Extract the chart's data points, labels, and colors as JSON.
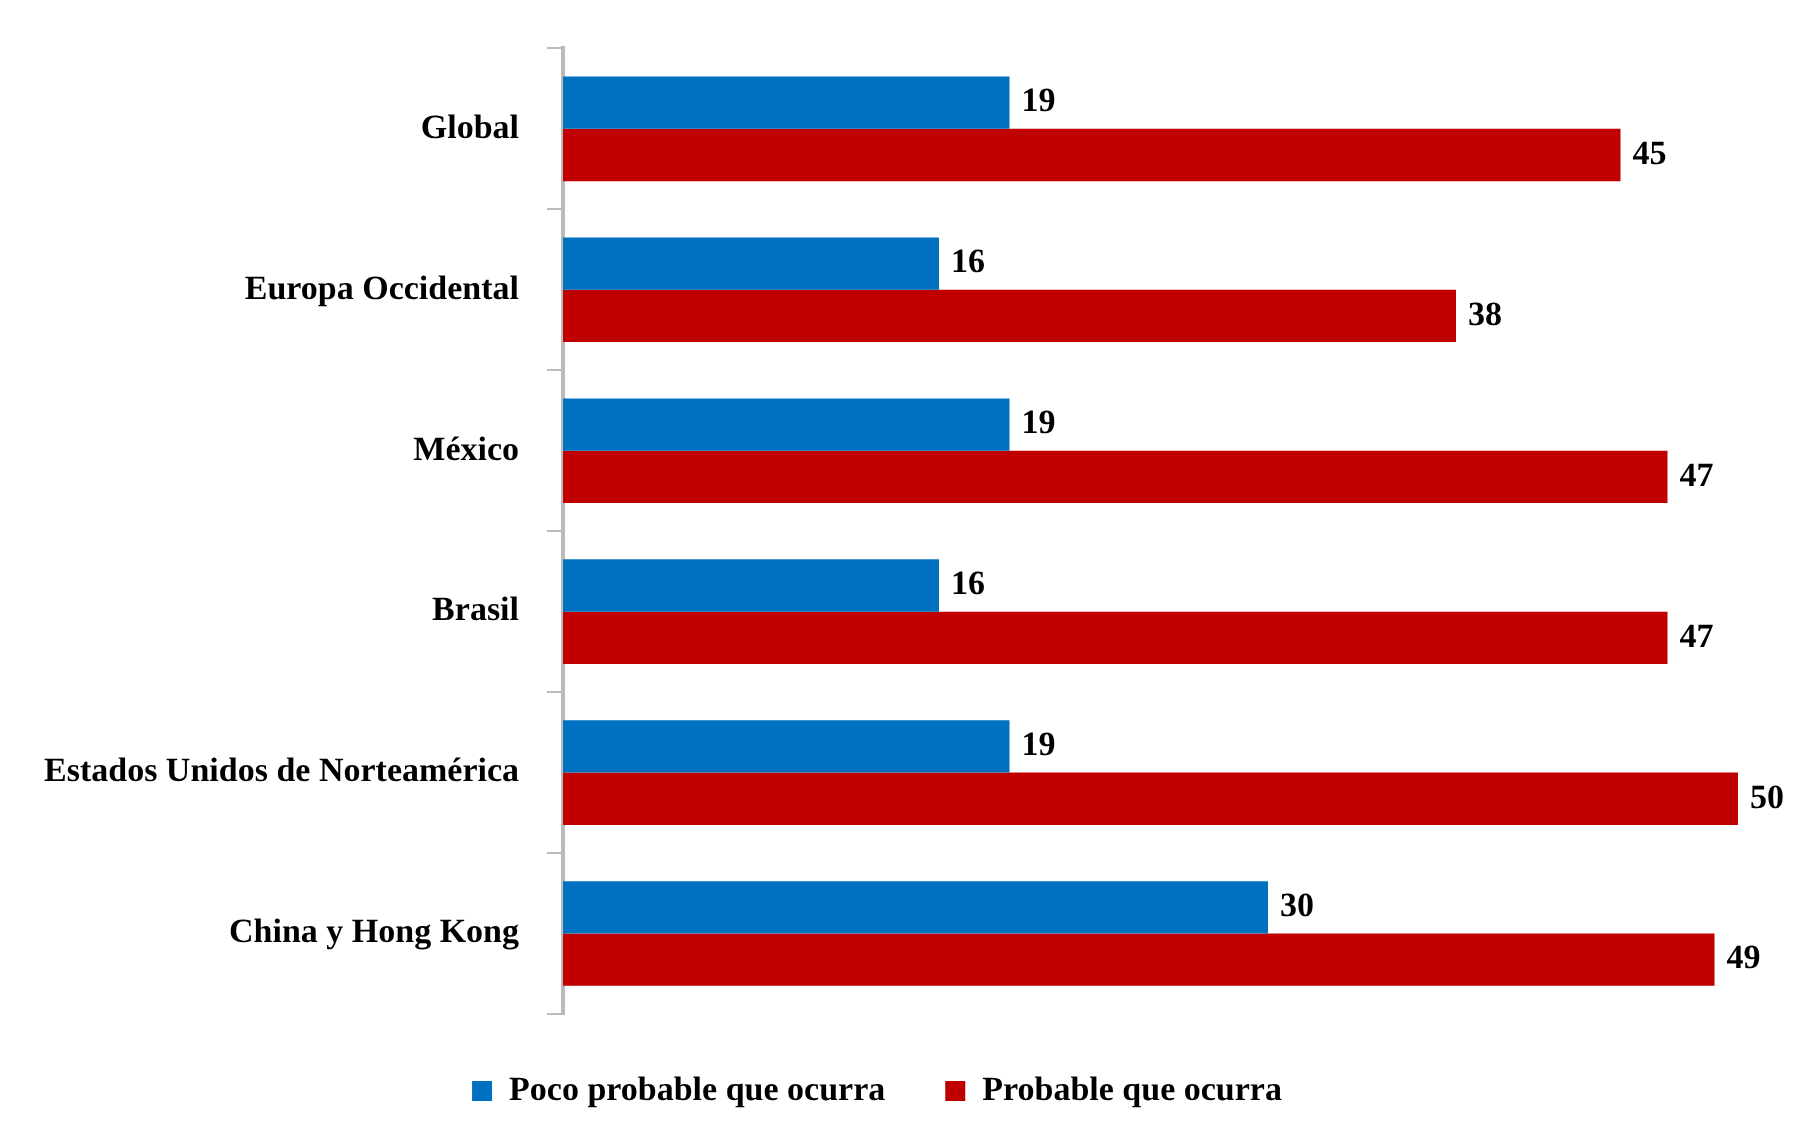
{
  "chart_data": {
    "type": "bar",
    "orientation": "horizontal",
    "categories": [
      "Global",
      "Europa Occidental",
      "México",
      "Brasil",
      "Estados Unidos de Norteamérica",
      "China y Hong Kong"
    ],
    "series": [
      {
        "name": "Poco probable que ocurra",
        "color": "#0070c0",
        "values": [
          19,
          16,
          19,
          16,
          19,
          30
        ]
      },
      {
        "name": "Probable que ocurra",
        "color": "#c00000",
        "values": [
          45,
          38,
          47,
          47,
          50,
          49
        ]
      }
    ],
    "data_labels": true,
    "legend": "bottom",
    "grid": false
  }
}
